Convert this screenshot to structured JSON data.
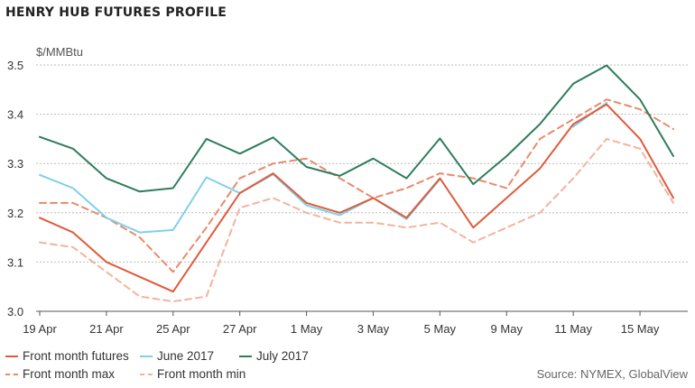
{
  "chart_data": {
    "type": "line",
    "title": "HENRY HUB FUTURES PROFILE",
    "ylabel": "$/MMBtu",
    "ylim": [
      3.0,
      3.5
    ],
    "yticks": [
      "3.0",
      "3.1",
      "3.2",
      "3.3",
      "3.4",
      "3.5"
    ],
    "yticks_values": [
      3.0,
      3.1,
      3.2,
      3.3,
      3.4,
      3.5
    ],
    "x": [
      "19 Apr",
      "20 Apr",
      "21 Apr",
      "24 Apr",
      "25 Apr",
      "26 Apr",
      "27 Apr",
      "28 Apr",
      "1 May",
      "2 May",
      "3 May",
      "4 May",
      "5 May",
      "8 May",
      "9 May",
      "10 May",
      "11 May",
      "12 May",
      "15 May",
      "16 May"
    ],
    "xtick_labels": [
      "19 Apr",
      "21 Apr",
      "25 Apr",
      "27 Apr",
      "1 May",
      "3 May",
      "5 May",
      "9 May",
      "11 May",
      "15 May"
    ],
    "xtick_indices": [
      0,
      2,
      4,
      6,
      8,
      10,
      12,
      14,
      16,
      18
    ],
    "series": [
      {
        "name": "Front month futures",
        "color": "#e05a3a",
        "style": "solid",
        "width": 2,
        "values": [
          3.19,
          3.16,
          3.1,
          3.07,
          3.04,
          3.14,
          3.24,
          3.28,
          3.22,
          3.2,
          3.23,
          3.19,
          3.27,
          3.17,
          3.23,
          3.29,
          3.38,
          3.42,
          3.35,
          3.23
        ]
      },
      {
        "name": "June 2017",
        "color": "#7fd0ea",
        "style": "solid",
        "width": 2,
        "values": [
          3.277,
          3.25,
          3.19,
          3.16,
          3.165,
          3.272,
          3.24,
          3.278,
          3.215,
          3.195,
          3.23,
          3.187,
          3.268,
          null,
          null,
          null,
          3.375,
          3.423,
          null,
          null
        ]
      },
      {
        "name": "July 2017",
        "color": "#2e7d5b",
        "style": "solid",
        "width": 2,
        "values": [
          3.354,
          3.33,
          3.27,
          3.243,
          3.25,
          3.35,
          3.32,
          3.353,
          3.293,
          3.275,
          3.31,
          3.27,
          3.351,
          3.258,
          3.315,
          3.38,
          3.462,
          3.499,
          3.43,
          3.315
        ]
      },
      {
        "name": "Front month max",
        "color": "#e88a6a",
        "style": "dashed",
        "width": 2,
        "values": [
          3.22,
          3.22,
          3.19,
          3.15,
          3.08,
          3.17,
          3.27,
          3.3,
          3.31,
          3.27,
          3.23,
          3.25,
          3.28,
          3.27,
          3.25,
          3.35,
          3.39,
          3.43,
          3.41,
          3.37
        ]
      },
      {
        "name": "Front month min",
        "color": "#f2b49c",
        "style": "dashed",
        "width": 2,
        "values": [
          3.14,
          3.13,
          3.08,
          3.03,
          3.02,
          3.03,
          3.21,
          3.23,
          3.2,
          3.18,
          3.18,
          3.17,
          3.18,
          3.14,
          3.17,
          3.2,
          3.27,
          3.35,
          3.33,
          3.22
        ]
      }
    ],
    "grid": true,
    "legend_position": "bottom-left",
    "source": "Source: NYMEX, GlobalView"
  },
  "legend": {
    "row1": [
      "Front month futures",
      "June 2017",
      "July 2017"
    ],
    "row2": [
      "Front month max",
      "Front month min"
    ]
  }
}
